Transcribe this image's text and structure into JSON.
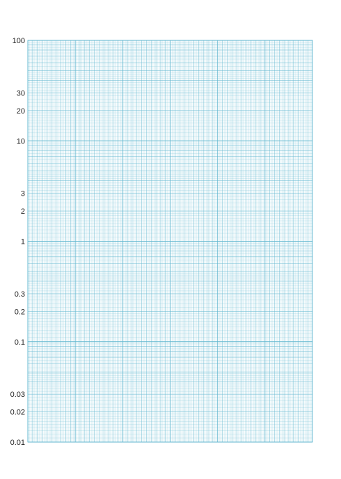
{
  "sheet": {
    "type": "semi-log graph paper",
    "decades": 4,
    "y_scale": "log",
    "x_scale": "linear",
    "line_color": "#5fb6cf",
    "y_tick_labels": [
      "100",
      "30",
      "20",
      "10",
      "3",
      "2",
      "1",
      "0.3",
      "0.2",
      "0.1",
      "0.03",
      "0.02",
      "0.01"
    ]
  },
  "chart_data": {
    "type": "table",
    "title": "",
    "xlabel": "",
    "ylabel": "",
    "yscale": "log",
    "ylim": [
      0.01,
      100
    ],
    "y_ticks": [
      100,
      30,
      20,
      10,
      3,
      2,
      1,
      0.3,
      0.2,
      0.1,
      0.03,
      0.02,
      0.01
    ],
    "grid": true
  }
}
